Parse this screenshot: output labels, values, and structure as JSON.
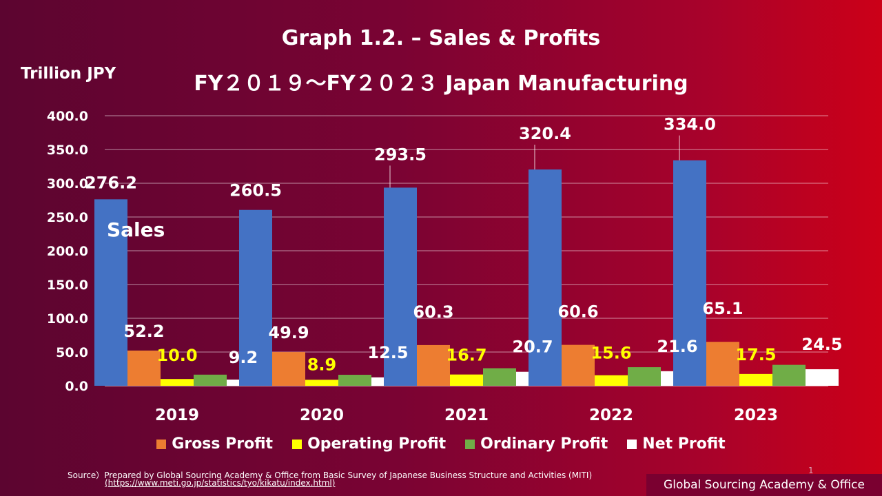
{
  "title": "Graph 1.2. – Sales & Profits",
  "subtitle": "FY２０１９～FY２０２３ Japan Manufacturing",
  "unit_label": "Trillion JPY",
  "series_label_sales": "Sales",
  "source_line1": "Source）Prepared by Global Sourcing Academy & Office from Basic Survey of Japanese Business Structure and Activities (MITI)",
  "source_line2": "(https://www.meti.go.jp/statistics/tyo/kikatu/index.html)",
  "page_number": "1",
  "brand": "Global Sourcing Academy & Office",
  "chart_data": {
    "type": "bar",
    "categories": [
      "2019",
      "2020",
      "2021",
      "2022",
      "2023"
    ],
    "ylim": [
      0,
      400
    ],
    "yticks": [
      "0.0",
      "50.0",
      "100.0",
      "150.0",
      "200.0",
      "250.0",
      "300.0",
      "350.0",
      "400.0"
    ],
    "grid": true,
    "legend_position": "bottom",
    "series": [
      {
        "name": "Sales",
        "color": "#4472c4",
        "label_color": "#ffffff",
        "values": [
          276.2,
          260.5,
          293.5,
          320.4,
          334.0
        ],
        "labels": [
          "276.2",
          "260.5",
          "293.5",
          "320.4",
          "334.0"
        ]
      },
      {
        "name": "Gross Profit",
        "color": "#ed7d31",
        "label_color": "#ffffff",
        "values": [
          52.2,
          49.9,
          60.3,
          60.6,
          65.1
        ],
        "labels": [
          "52.2",
          "49.9",
          "60.3",
          "60.6",
          "65.1"
        ]
      },
      {
        "name": "Operating Profit",
        "color": "#ffff00",
        "label_color": "#ffff00",
        "values": [
          10.0,
          8.9,
          16.7,
          15.6,
          17.5
        ],
        "labels": [
          "10.0",
          "8.9",
          "16.7",
          "15.6",
          "17.5"
        ]
      },
      {
        "name": "Ordinary Profit",
        "color": "#70ad47",
        "label_color": "#ffffff",
        "values": [
          16.5,
          16.3,
          26.0,
          27.5,
          31.0
        ],
        "labels": []
      },
      {
        "name": "Net Profit",
        "color": "#ffffff",
        "label_color": "#ffffff",
        "values": [
          9.2,
          12.5,
          20.7,
          21.6,
          24.5
        ],
        "labels": [
          "9.2",
          "12.5",
          "20.7",
          "21.6",
          "24.5"
        ]
      }
    ]
  }
}
